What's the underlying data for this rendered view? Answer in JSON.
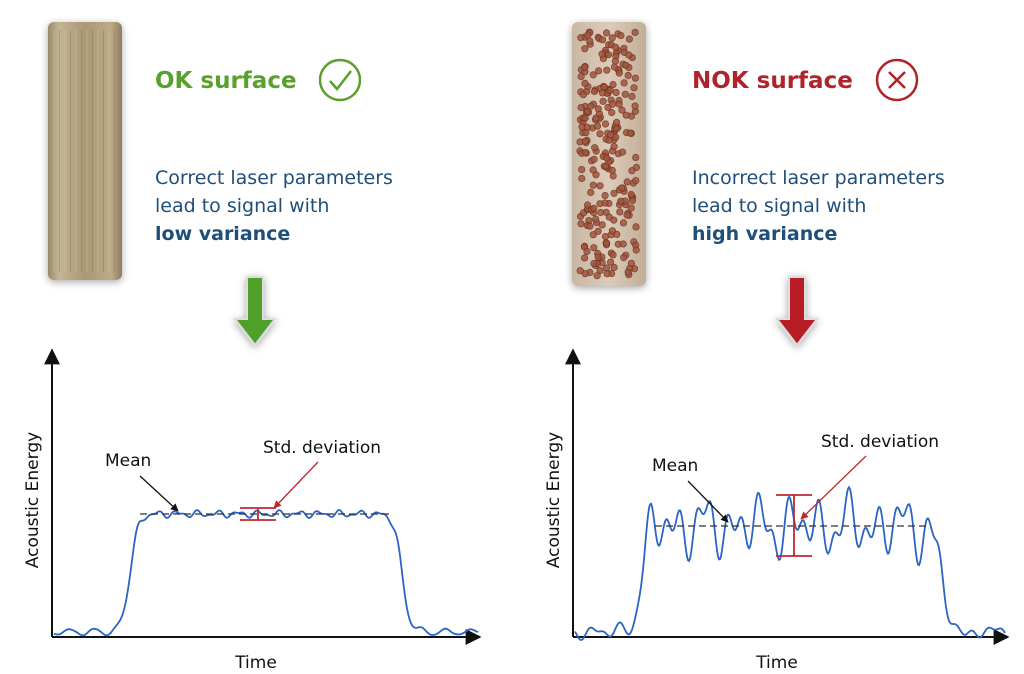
{
  "panels": [
    {
      "title": "OK surface",
      "description": [
        "Correct laser parameters",
        "lead to signal with"
      ],
      "emphasis": "low variance",
      "plot": {
        "y_label": "Acoustic Energy",
        "x_label": "Time",
        "mean_label": "Mean",
        "std_label": "Std. deviation"
      }
    },
    {
      "title": "NOK surface",
      "description": [
        "Incorrect laser parameters",
        "lead to signal with"
      ],
      "emphasis": "high variance",
      "plot": {
        "y_label": "Acoustic Energy",
        "x_label": "Time",
        "mean_label": "Mean",
        "std_label": "Std. deviation"
      }
    }
  ]
}
